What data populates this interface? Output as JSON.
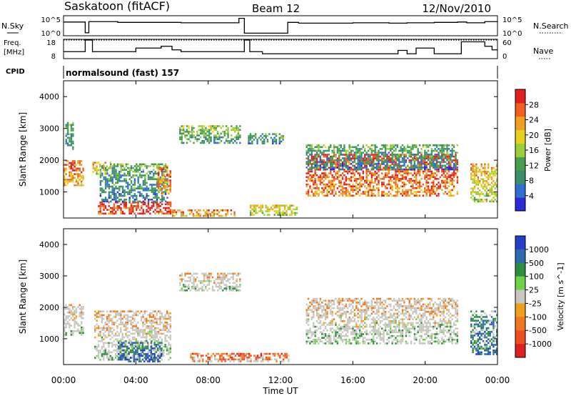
{
  "header": {
    "station": "Saskatoon (fitACF)",
    "beam": "Beam 12",
    "date": "12/Nov/2010"
  },
  "noise_panel": {
    "left_label": "N.Sky",
    "right_label": "N.Search",
    "left_ticks": [
      "10^5",
      "10^0"
    ],
    "right_ticks": [
      "10^5",
      "10^0"
    ]
  },
  "freq_panel": {
    "left_label_line1": "Freq.",
    "left_label_line2": "[MHz]",
    "left_ticks": [
      "18",
      "8"
    ],
    "right_label": "Nave",
    "right_ticks": [
      "60",
      "0"
    ]
  },
  "cpid": {
    "label": "CPID",
    "text": "normalsound (fast) 157"
  },
  "time_axis": {
    "label": "Time UT",
    "ticks": [
      "00:00",
      "04:00",
      "08:00",
      "12:00",
      "16:00",
      "20:00",
      "00:00"
    ]
  },
  "colors": {
    "power": [
      "#2a2ad8",
      "#2e6fd0",
      "#3a8f6a",
      "#4aa04a",
      "#9acd3a",
      "#e8d020",
      "#f0a020",
      "#f06020",
      "#e02020"
    ],
    "velocity": [
      "#2540c8",
      "#2e6ab0",
      "#2e8f40",
      "#6fd04a",
      "#c8c8c0",
      "#f0a020",
      "#f07820",
      "#f05020",
      "#e02020"
    ],
    "gray_scatter": "#c8c8c0"
  },
  "chart_data": [
    {
      "type": "line",
      "title": "N.Sky / N.Search",
      "x": [
        0,
        1.2,
        1.4,
        3.0,
        6.5,
        9.7,
        10.0,
        12.4,
        13.0,
        16.0,
        18.0,
        19.0,
        20.5,
        21.8,
        22.3,
        23.3,
        24.0
      ],
      "series": [
        {
          "name": "N.Sky",
          "values": [
            3.5,
            0.6,
            3.6,
            3.4,
            3.3,
            4.5,
            0.5,
            3.4,
            3.2,
            3.3,
            3.2,
            3.3,
            3.4,
            3.5,
            3.3,
            3.6,
            3.7
          ]
        }
      ],
      "ylim": [
        0,
        5
      ]
    },
    {
      "type": "line",
      "title": "Freq. / Nave",
      "x": [
        0,
        1.0,
        1.2,
        1.6,
        3.3,
        4.0,
        5.0,
        5.4,
        6.0,
        6.5,
        10.0,
        10.3,
        11.0,
        16.0,
        18.0,
        18.5,
        19.0,
        19.5,
        20.5,
        21.0,
        22.0,
        23.3,
        23.7,
        24.0
      ],
      "series": [
        {
          "name": "Freq",
          "values": [
            11.5,
            11.5,
            18,
            11.5,
            11.5,
            13.5,
            13.5,
            14.5,
            12.5,
            11.5,
            18,
            11.5,
            10.3,
            10.3,
            10.3,
            12.2,
            10.3,
            13.5,
            10.3,
            10.3,
            17.0,
            14.5,
            12.5,
            12.5
          ]
        },
        {
          "name": "Nave",
          "values": [
            36,
            36,
            36,
            36,
            36,
            36,
            36,
            36,
            36,
            36,
            36,
            36,
            36,
            36,
            36,
            36,
            36,
            36,
            36,
            36,
            36,
            36,
            36,
            36
          ]
        }
      ],
      "ylim": [
        8,
        18
      ]
    },
    {
      "type": "heatmap",
      "title": "Power [dB]",
      "xlabel": "Time UT",
      "ylabel": "Slant Range [km]",
      "xlim": [
        0,
        24
      ],
      "ylim": [
        180,
        4500
      ],
      "yticks": [
        1000,
        2000,
        3000,
        4000
      ],
      "colorbar": {
        "label": "Power [dB]",
        "ticks": [
          "4",
          "8",
          "12",
          "16",
          "20",
          "24",
          "28"
        ]
      },
      "regions": [
        {
          "t0": 0.0,
          "t1": 1.1,
          "r0": 1200,
          "r1": 2000,
          "level": 0.75
        },
        {
          "t0": 0.1,
          "t1": 0.6,
          "r0": 2300,
          "r1": 3200,
          "level": 0.35
        },
        {
          "t0": 1.6,
          "t1": 2.6,
          "r0": 1550,
          "r1": 1950,
          "level": 0.6
        },
        {
          "t0": 1.9,
          "t1": 6.0,
          "r0": 300,
          "r1": 700,
          "level": 0.9
        },
        {
          "t0": 2.0,
          "t1": 5.8,
          "r0": 700,
          "r1": 1900,
          "level": 0.3
        },
        {
          "t0": 5.2,
          "t1": 6.0,
          "r0": 900,
          "r1": 1800,
          "level": 0.75
        },
        {
          "t0": 6.4,
          "t1": 9.8,
          "r0": 2500,
          "r1": 3100,
          "level": 0.4
        },
        {
          "t0": 6.0,
          "t1": 9.5,
          "r0": 200,
          "r1": 450,
          "level": 0.7
        },
        {
          "t0": 10.2,
          "t1": 12.2,
          "r0": 2500,
          "r1": 2850,
          "level": 0.3
        },
        {
          "t0": 10.3,
          "t1": 13.0,
          "r0": 250,
          "r1": 600,
          "level": 0.55
        },
        {
          "t0": 13.4,
          "t1": 21.8,
          "r0": 850,
          "r1": 2200,
          "level": 0.85
        },
        {
          "t0": 13.4,
          "t1": 21.8,
          "r0": 1700,
          "r1": 2500,
          "level": 0.3
        },
        {
          "t0": 22.5,
          "t1": 24.0,
          "r0": 700,
          "r1": 1900,
          "level": 0.6
        }
      ]
    },
    {
      "type": "heatmap",
      "title": "Velocity [m s^-1]",
      "xlabel": "Time UT",
      "ylabel": "Slant Range [km]",
      "xlim": [
        0,
        24
      ],
      "ylim": [
        180,
        4500
      ],
      "yticks": [
        1000,
        2000,
        3000,
        4000
      ],
      "colorbar": {
        "label": "Velocity [m s^-1]",
        "ticks": [
          "1000",
          "500",
          "100",
          "25",
          "-25",
          "-100",
          "-500",
          "-1000"
        ]
      },
      "regions": [
        {
          "t0": 0.0,
          "t1": 1.1,
          "r0": 1100,
          "r1": 2100,
          "level": 0.5
        },
        {
          "t0": 1.7,
          "t1": 6.0,
          "r0": 300,
          "r1": 1900,
          "level": 0.5
        },
        {
          "t0": 3.0,
          "t1": 5.5,
          "r0": 250,
          "r1": 900,
          "level": 0.15
        },
        {
          "t0": 6.4,
          "t1": 9.8,
          "r0": 2500,
          "r1": 3100,
          "level": 0.5
        },
        {
          "t0": 7.0,
          "t1": 12.5,
          "r0": 250,
          "r1": 550,
          "level": 0.7
        },
        {
          "t0": 13.4,
          "t1": 21.8,
          "r0": 850,
          "r1": 2300,
          "level": 0.5
        },
        {
          "t0": 22.5,
          "t1": 24.0,
          "r0": 500,
          "r1": 1900,
          "level": 0.25
        }
      ]
    }
  ]
}
